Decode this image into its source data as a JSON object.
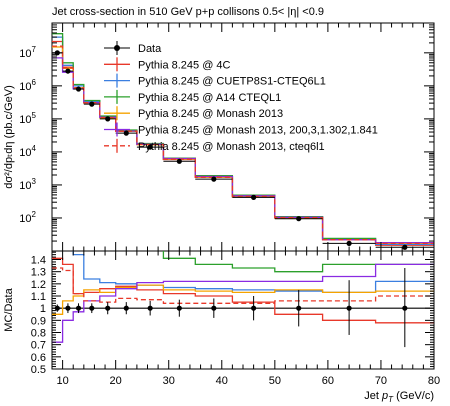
{
  "chart_data": [
    {
      "type": "step",
      "title": "Jet cross-section in 510 GeV p+p collisons 0.5< |η| <0.9",
      "ylabel": "dσ²/dpₜdη (pb.c/GeV)",
      "yscale": "log",
      "ylim": [
        10,
        80000000
      ],
      "xlim": [
        8,
        80
      ],
      "bin_edges": [
        8,
        10,
        12,
        14,
        17,
        20,
        24,
        29,
        35,
        42,
        50,
        59,
        69,
        80
      ],
      "legend_position": "top-left",
      "yticks": [
        {
          "value": 100,
          "base": "10",
          "exp": "2"
        },
        {
          "value": 1000,
          "base": "10",
          "exp": "3"
        },
        {
          "value": 10000,
          "base": "10",
          "exp": "4"
        },
        {
          "value": 100000,
          "base": "10",
          "exp": "5"
        },
        {
          "value": 1000000,
          "base": "10",
          "exp": "6"
        },
        {
          "value": 10000000,
          "base": "10",
          "exp": "7"
        }
      ],
      "data": {
        "name": "Data",
        "color": "#000000",
        "x": [
          9,
          11,
          13,
          15.5,
          18.5,
          22,
          26.5,
          32,
          38.5,
          46,
          54.5,
          64,
          74.5
        ],
        "y": [
          10000000,
          2800000,
          800000,
          280000,
          100000,
          37000,
          14000,
          5200,
          1500,
          420,
          95,
          17,
          13
        ]
      },
      "series": [
        {
          "name": "Pythia 8.245 @ 4C",
          "color": "#e8382a",
          "dashed": false,
          "values": [
            22000000,
            3700000,
            870000,
            320000,
            115000,
            44000,
            17000,
            5900,
            1700,
            430,
            100,
            23,
            15
          ]
        },
        {
          "name": "Pythia 8.245 @ CUETP8S1-CTEQ6L1",
          "color": "#3b7fe0",
          "dashed": false,
          "values": [
            30000000,
            4200000,
            1000000,
            340000,
            120000,
            45000,
            17500,
            6200,
            1800,
            470,
            107,
            23,
            16
          ]
        },
        {
          "name": "Pythia 8.245 @ A14 CTEQL1",
          "color": "#2ca02c",
          "dashed": false,
          "values": [
            38000000,
            5000000,
            1100000,
            360000,
            122000,
            46000,
            18000,
            6500,
            1900,
            490,
            110,
            24,
            18
          ]
        },
        {
          "name": "Pythia 8.245 @ Monash 2013",
          "color": "#f5a300",
          "dashed": false,
          "values": [
            15000000,
            3400000,
            860000,
            300000,
            108000,
            42000,
            16500,
            6000,
            1700,
            440,
            100,
            22,
            17
          ]
        },
        {
          "name": "Pythia 8.245 @ Monash 2013, 200,3,1.302,1.841",
          "color": "#8a2be2",
          "dashed": false,
          "values": [
            7000000,
            2600000,
            810000,
            310000,
            112000,
            43000,
            17000,
            6300,
            1800,
            470,
            105,
            22,
            18
          ]
        },
        {
          "name": "Pythia 8.245 @ Monash 2013, cteq6l1",
          "color": "#e8382a",
          "dashed": true,
          "values": [
            16000000,
            3500000,
            880000,
            310000,
            110000,
            42500,
            16800,
            6000,
            1700,
            450,
            102,
            22,
            17
          ]
        }
      ]
    },
    {
      "type": "step",
      "ylabel": "MC/Data",
      "xlabel": "Jet p_T (GeV/c)",
      "xlabel_main": "Jet ",
      "xlabel_p": "p",
      "xlabel_sub": "T",
      "xlabel_unit": " (GeV/c)",
      "xlim": [
        8,
        80
      ],
      "ylim": [
        0.5,
        1.47
      ],
      "reference": 1.0,
      "xticks": [
        10,
        20,
        30,
        40,
        50,
        60,
        70,
        80
      ],
      "yticks": [
        "0.5",
        "0.6",
        "0.7",
        "0.8",
        "0.9",
        "1",
        "1.1",
        "1.2",
        "1.3",
        "1.4"
      ],
      "data_errors": [
        {
          "x": 9,
          "low": 0.97,
          "high": 1.03
        },
        {
          "x": 11,
          "low": 0.96,
          "high": 1.04
        },
        {
          "x": 13,
          "low": 0.96,
          "high": 1.04
        },
        {
          "x": 15.5,
          "low": 0.96,
          "high": 1.04
        },
        {
          "x": 18.5,
          "low": 0.95,
          "high": 1.05
        },
        {
          "x": 22,
          "low": 0.95,
          "high": 1.05
        },
        {
          "x": 26.5,
          "low": 0.94,
          "high": 1.06
        },
        {
          "x": 32,
          "low": 0.93,
          "high": 1.07
        },
        {
          "x": 38.5,
          "low": 0.92,
          "high": 1.08
        },
        {
          "x": 46,
          "low": 0.9,
          "high": 1.1
        },
        {
          "x": 54.5,
          "low": 0.85,
          "high": 1.15
        },
        {
          "x": 64,
          "low": 0.78,
          "high": 1.23
        },
        {
          "x": 74.5,
          "low": 0.68,
          "high": 1.33
        }
      ],
      "series": [
        {
          "name": "Pythia 8.245 @ 4C",
          "color": "#e8382a",
          "dashed": false,
          "values": [
            1.41,
            1.36,
            1.12,
            1.13,
            1.16,
            1.18,
            1.15,
            1.12,
            1.1,
            1.05,
            0.95,
            0.9,
            0.88
          ]
        },
        {
          "name": "Pythia 8.245 @ CUETP8S1-CTEQ6L1",
          "color": "#3b7fe0",
          "dashed": false,
          "values": [
            1.55,
            1.52,
            1.44,
            1.24,
            1.21,
            1.2,
            1.19,
            1.17,
            1.16,
            1.15,
            1.14,
            1.13,
            1.22
          ]
        },
        {
          "name": "Pythia 8.245 @ A14 CTEQL1",
          "color": "#2ca02c",
          "dashed": false,
          "values": [
            1.55,
            1.52,
            1.5,
            1.5,
            1.5,
            1.5,
            1.5,
            1.41,
            1.36,
            1.33,
            1.3,
            1.36,
            1.36
          ]
        },
        {
          "name": "Pythia 8.245 @ Monash 2013",
          "color": "#f5a300",
          "dashed": false,
          "values": [
            0.95,
            1.06,
            1.1,
            1.15,
            1.13,
            1.17,
            1.19,
            1.15,
            1.14,
            1.13,
            1.15,
            1.13,
            1.14
          ]
        },
        {
          "name": "Pythia 8.245 @ Monash 2013, 200,3,1.302,1.841",
          "color": "#8a2be2",
          "dashed": false,
          "values": [
            0.72,
            0.9,
            0.97,
            1.06,
            1.1,
            1.16,
            1.21,
            1.22,
            1.22,
            1.22,
            1.22,
            1.26,
            1.36
          ]
        },
        {
          "name": "Pythia 8.245 @ Monash 2013, cteq6l1",
          "color": "#e8382a",
          "dashed": true,
          "values": [
            1.33,
            1.31,
            1.12,
            1.06,
            1.05,
            1.08,
            1.07,
            1.04,
            1.04,
            1.04,
            1.06,
            1.06,
            1.1
          ]
        }
      ]
    }
  ]
}
